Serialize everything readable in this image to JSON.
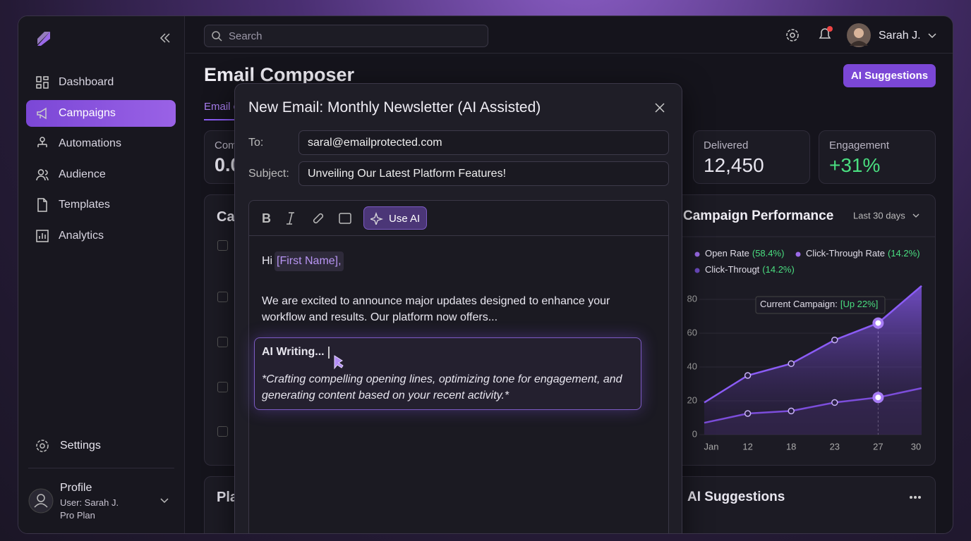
{
  "sidebar": {
    "nav": [
      "Dashboard",
      "Campaigns",
      "Automations",
      "Audience",
      "Templates",
      "Analytics"
    ],
    "active": 1,
    "settings": "Settings",
    "profile": {
      "title": "Profile",
      "user": "User: Sarah J.",
      "plan": "Pro Plan"
    }
  },
  "topbar": {
    "search": "Search",
    "user": "Sarah J."
  },
  "page": {
    "title": "Email Composer",
    "button": "AI Suggestions",
    "tab": "Email c"
  },
  "stats": [
    {
      "label": "Com",
      "value": "0.0"
    },
    {
      "label": "Delivered",
      "value": "12,450"
    },
    {
      "label": "Engagement",
      "value": "+31%"
    }
  ],
  "panels": {
    "campaigns": "Ca",
    "plans": "Pla",
    "ai_suggestions": "AI Suggestions"
  },
  "performance": {
    "title": "Campaign Performance",
    "range": "Last 30 days",
    "legend": [
      {
        "name": "Open Rate",
        "rate": "(58.4%)"
      },
      {
        "name": "Click-Through Rate",
        "rate": "(14.2%)"
      },
      {
        "name": "Click-Througt",
        "rate": "(14.2%)"
      }
    ],
    "annotation": {
      "text": "Current Campaign:",
      "highlight": "[Up 22%]"
    },
    "chart": {
      "type": "line",
      "categories": [
        "Jan",
        "12",
        "18",
        "23",
        "27",
        "30"
      ],
      "series": [
        {
          "name": "Open Rate",
          "color": "#8b5cf6",
          "values": [
            19,
            35,
            42,
            56,
            66,
            88
          ]
        },
        {
          "name": "Click-Through Rate",
          "color": "#7c4ddb",
          "values": [
            7,
            12.5,
            14,
            19,
            22,
            27.5
          ]
        }
      ],
      "ylim": [
        0,
        90
      ],
      "yticks": [
        0,
        20,
        40,
        60,
        80
      ],
      "grid": true,
      "highlight_index": 4
    }
  },
  "modal": {
    "title": "New Email: Monthly Newsletter (AI Assisted)",
    "to_label": "To:",
    "to": "saral@emailprotected.com",
    "subject_label": "Subject:",
    "subject": "Unveiling Our Latest Platform Features!",
    "use_ai": "Use AI",
    "greeting": "Hi",
    "placeholder": "[First Name],",
    "paragraph": "We are excited to announce major updates designed to enhance your workflow and results. Our platform now offers...",
    "ai_title": "AI Writing...",
    "ai_text": "*Crafting compelling opening lines, optimizing tone for engagement, and generating content based on your recent activity.*"
  }
}
